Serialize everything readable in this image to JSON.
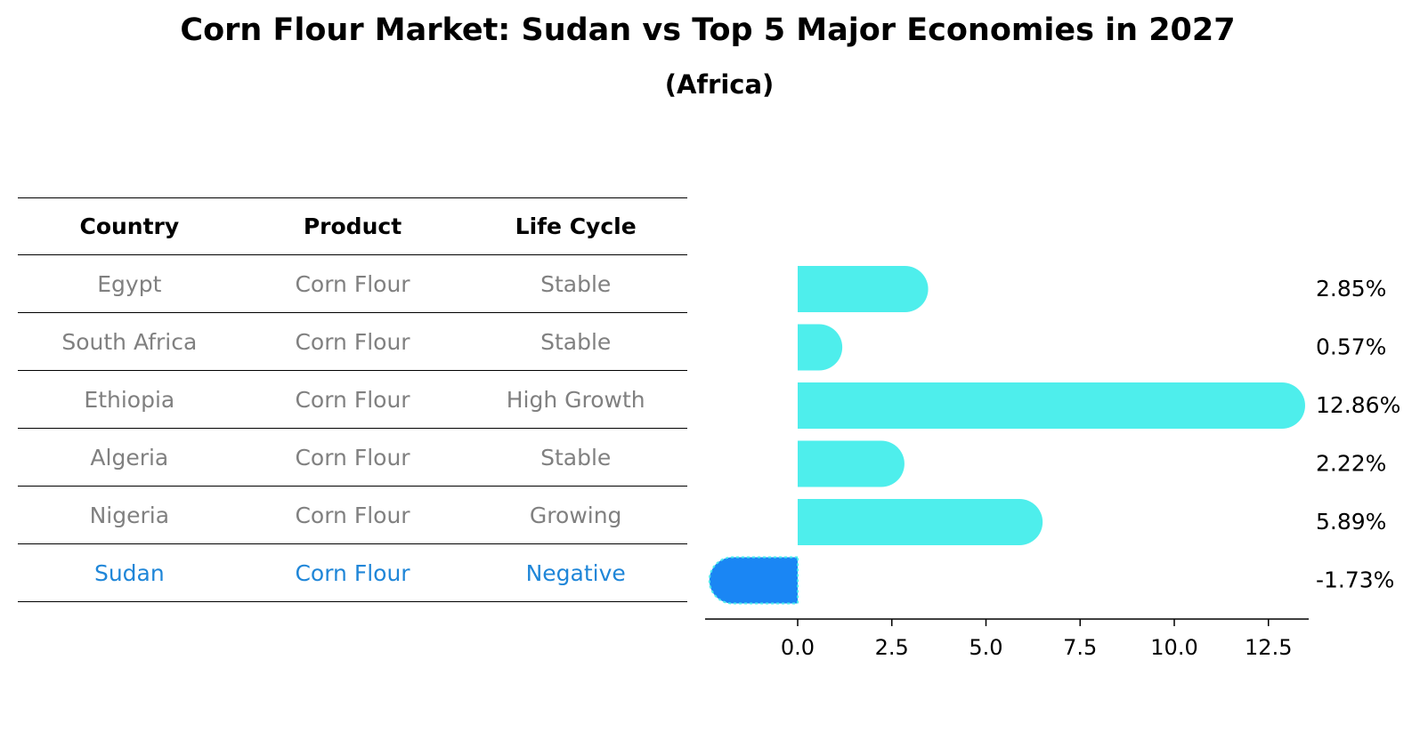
{
  "header": {
    "title": "Corn Flour Market: Sudan vs Top 5 Major Economies in 2027",
    "subtitle": "(Africa)"
  },
  "table": {
    "columns": [
      "Country",
      "Product",
      "Life Cycle"
    ],
    "rows": [
      [
        "Egypt",
        "Corn Flour",
        "Stable"
      ],
      [
        "South Africa",
        "Corn Flour",
        "Stable"
      ],
      [
        "Ethiopia",
        "Corn Flour",
        "High Growth"
      ],
      [
        "Algeria",
        "Corn Flour",
        "Stable"
      ],
      [
        "Nigeria",
        "Corn Flour",
        "Growing"
      ],
      [
        "Sudan",
        "Corn Flour",
        "Negative"
      ]
    ],
    "highlight_row": 5,
    "highlight_color": "#1f86d8",
    "text_color": "#808080"
  },
  "chart_data": {
    "type": "bar",
    "orientation": "horizontal",
    "categories": [
      "Egypt",
      "South Africa",
      "Ethiopia",
      "Algeria",
      "Nigeria",
      "Sudan"
    ],
    "values": [
      2.85,
      0.57,
      12.86,
      2.22,
      5.89,
      -1.73
    ],
    "value_labels": [
      "2.85%",
      "0.57%",
      "12.86%",
      "2.22%",
      "5.89%",
      "-1.73%"
    ],
    "bar_colors": [
      "#4eeeec",
      "#4eeeec",
      "#4eeeec",
      "#4eeeec",
      "#4eeeec",
      "#1a86f4"
    ],
    "x_ticks": [
      0.0,
      2.5,
      5.0,
      7.5,
      10.0,
      12.5
    ],
    "x_tick_labels": [
      "0.0",
      "2.5",
      "5.0",
      "7.5",
      "10.0",
      "12.5"
    ],
    "xlim": [
      -2.5,
      13.6
    ],
    "xlabel": "",
    "ylabel": "",
    "grid": false,
    "legend": false
  }
}
